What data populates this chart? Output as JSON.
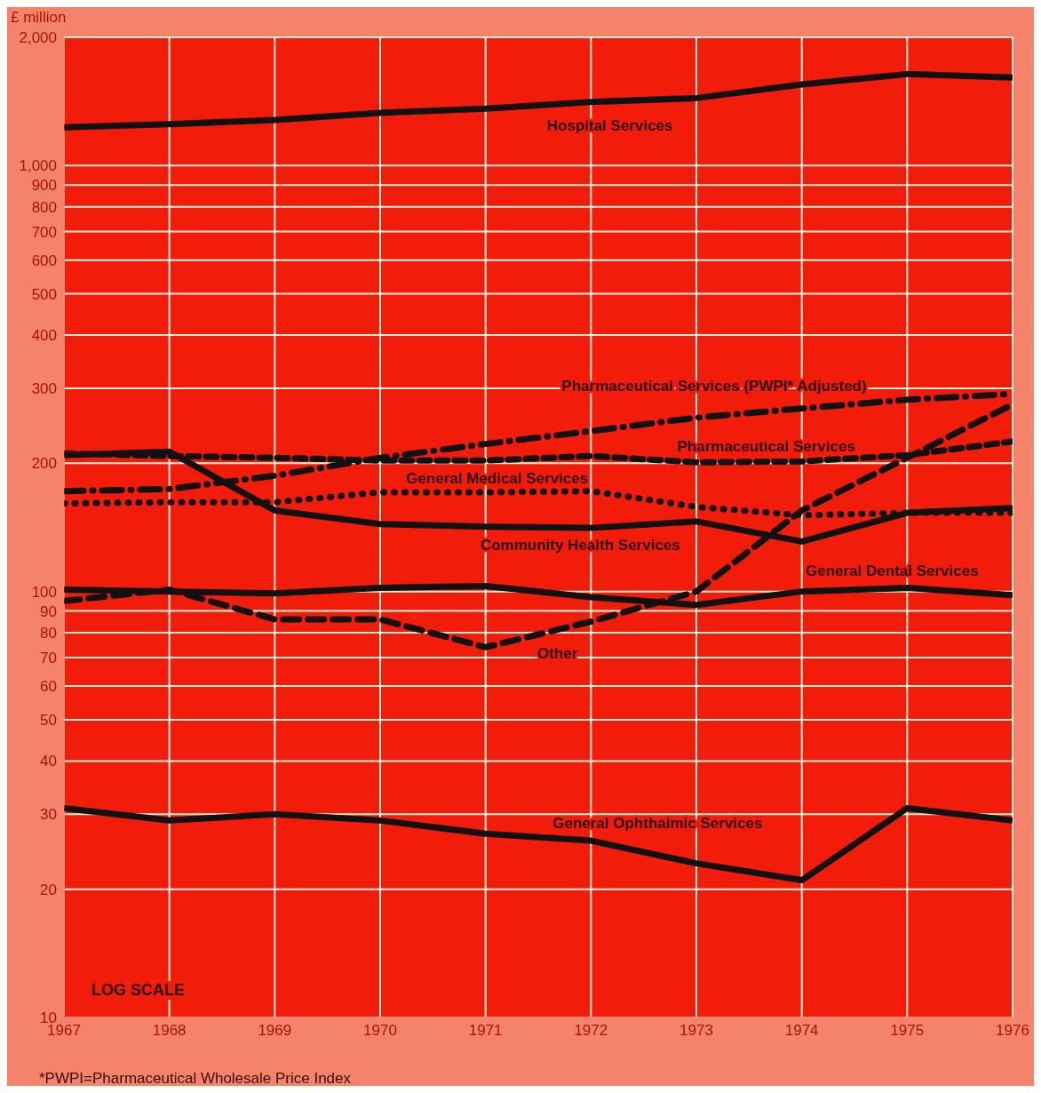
{
  "chart_data": {
    "type": "line",
    "ylabel": "£ million",
    "x": [
      1967,
      1968,
      1969,
      1970,
      1971,
      1972,
      1973,
      1974,
      1975,
      1976
    ],
    "xlim": [
      1967,
      1976
    ],
    "xticks": [
      1967,
      1968,
      1969,
      1970,
      1971,
      1972,
      1973,
      1974,
      1975,
      1976
    ],
    "ylim": [
      10,
      2000
    ],
    "yticks": [
      10,
      20,
      30,
      40,
      50,
      60,
      70,
      80,
      90,
      100,
      200,
      300,
      400,
      500,
      600,
      700,
      800,
      900,
      {
        "value": 1000,
        "label": "1,000"
      },
      {
        "value": 2000,
        "label": "2,000"
      }
    ],
    "log": "y",
    "grid": true,
    "legend": false,
    "marker": "none",
    "series": [
      {
        "name": "Hospital Services",
        "color": "#111111",
        "line_style": "solid",
        "values": [
          1230,
          1250,
          1280,
          1330,
          1360,
          1410,
          1440,
          1550,
          1640,
          1610
        ]
      },
      {
        "name": "Pharmaceutical Services (PWPI* Adjusted)",
        "color": "#111111",
        "line_style": "dashdot",
        "values": [
          172,
          174,
          187,
          206,
          222,
          238,
          256,
          269,
          282,
          291
        ]
      },
      {
        "name": "Pharmaceutical Services",
        "color": "#111111",
        "line_style": "dashed",
        "values": [
          211,
          208,
          206,
          203,
          203,
          208,
          201,
          202,
          209,
          225
        ]
      },
      {
        "name": "General Medical Services",
        "color": "#111111",
        "line_style": "dotted",
        "values": [
          161,
          162,
          162,
          171,
          171,
          172,
          158,
          151,
          153,
          153
        ]
      },
      {
        "name": "Community Health Services",
        "color": "#111111",
        "line_style": "solid",
        "values": [
          209,
          213,
          155,
          144,
          142,
          141,
          146,
          131,
          153,
          157
        ]
      },
      {
        "name": "General Dental Services",
        "color": "#111111",
        "line_style": "solid",
        "values": [
          101,
          100,
          99,
          102,
          103,
          97,
          93,
          100,
          102,
          98
        ]
      },
      {
        "name": "Other",
        "color": "#111111",
        "line_style": "dashed",
        "values": [
          95,
          101,
          86,
          86,
          74,
          85,
          100,
          155,
          206,
          275
        ]
      },
      {
        "name": "General Ophthalmic Services",
        "color": "#111111",
        "line_style": "solid",
        "values": [
          31,
          29,
          30,
          29,
          27,
          26,
          23,
          21,
          31,
          29
        ]
      }
    ],
    "annotations": [
      "LOG SCALE",
      "*PWPI=Pharmaceutical Wholesale Price Index"
    ]
  }
}
